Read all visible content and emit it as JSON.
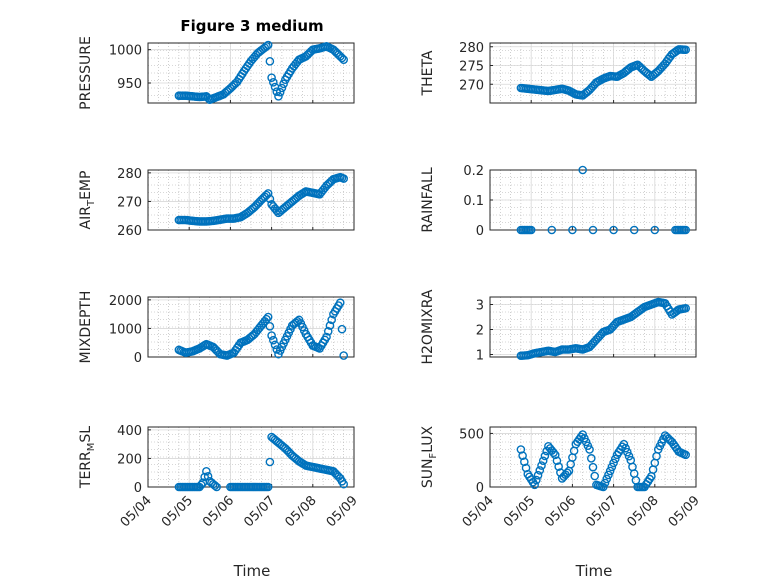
{
  "figure_title": "Figure 3 medium",
  "chart_data": [
    {
      "type": "scatter",
      "ylabel": "PRESSURE",
      "ylim": [
        920,
        1010
      ],
      "yticks": [
        950,
        1000
      ],
      "ytick_labels": [
        "950",
        "1000"
      ],
      "grid": true,
      "x": [
        "05/04 18:00",
        "05/04 22:00",
        "05/05 02:00",
        "05/05 06:00",
        "05/05 10:00",
        "05/05 12:00",
        "05/05 16:00",
        "05/05 20:00",
        "05/06 00:00",
        "05/06 04:00",
        "05/06 08:00",
        "05/06 12:00",
        "05/06 16:00",
        "05/06 20:00",
        "05/06 22:00",
        "05/07 00:00",
        "05/07 04:00",
        "05/07 08:00",
        "05/07 12:00",
        "05/07 16:00",
        "05/07 20:00",
        "05/08 00:00",
        "05/08 04:00",
        "05/08 08:00",
        "05/08 12:00",
        "05/08 14:00",
        "05/08 16:00",
        "05/08 18:00"
      ],
      "y": [
        931,
        931,
        930,
        929,
        930,
        925,
        929,
        933,
        942,
        952,
        968,
        983,
        995,
        1003,
        1007,
        958,
        930,
        955,
        972,
        985,
        990,
        1000,
        1002,
        1005,
        1000,
        995,
        990,
        985
      ]
    },
    {
      "type": "scatter",
      "ylabel": "THETA",
      "ylim": [
        265,
        281
      ],
      "yticks": [
        270,
        275,
        280
      ],
      "ytick_labels": [
        "270",
        "275",
        "280"
      ],
      "grid": true,
      "x": [
        "05/04 18:00",
        "05/04 22:00",
        "05/05 02:00",
        "05/05 06:00",
        "05/05 10:00",
        "05/05 14:00",
        "05/05 18:00",
        "05/05 22:00",
        "05/06 02:00",
        "05/06 06:00",
        "05/06 10:00",
        "05/06 14:00",
        "05/06 18:00",
        "05/06 22:00",
        "05/07 02:00",
        "05/07 06:00",
        "05/07 10:00",
        "05/07 14:00",
        "05/07 18:00",
        "05/07 22:00",
        "05/08 02:00",
        "05/08 06:00",
        "05/08 10:00",
        "05/08 14:00",
        "05/08 18:00"
      ],
      "y": [
        269,
        268.8,
        268.6,
        268.4,
        268.2,
        268.5,
        268.8,
        268.3,
        267.3,
        267,
        268.5,
        270.5,
        271.5,
        272.2,
        272,
        273,
        274.5,
        275.2,
        273.5,
        272,
        273.5,
        275.5,
        278,
        279.3,
        279.2
      ]
    },
    {
      "type": "scatter",
      "ylabel": "AIR_TEMP",
      "ylim": [
        260,
        281
      ],
      "yticks": [
        260,
        270,
        280
      ],
      "ytick_labels": [
        "260",
        "270",
        "280"
      ],
      "grid": true,
      "x": [
        "05/04 18:00",
        "05/04 22:00",
        "05/05 02:00",
        "05/05 06:00",
        "05/05 10:00",
        "05/05 14:00",
        "05/05 18:00",
        "05/05 22:00",
        "05/06 02:00",
        "05/06 06:00",
        "05/06 10:00",
        "05/06 14:00",
        "05/06 18:00",
        "05/06 22:00",
        "05/07 00:00",
        "05/07 04:00",
        "05/07 08:00",
        "05/07 12:00",
        "05/07 16:00",
        "05/07 20:00",
        "05/08 00:00",
        "05/08 04:00",
        "05/08 08:00",
        "05/08 12:00",
        "05/08 16:00",
        "05/08 18:00"
      ],
      "y": [
        263.5,
        263.5,
        263.2,
        263,
        263,
        263.2,
        263.6,
        264,
        264,
        264.5,
        266,
        268,
        270.5,
        272.8,
        269,
        266,
        268,
        270,
        272,
        273.5,
        273,
        272.5,
        275.5,
        277.8,
        278.5,
        278
      ]
    },
    {
      "type": "scatter",
      "ylabel": "RAINFALL",
      "ylim": [
        0,
        0.2
      ],
      "yticks": [
        0,
        0.1,
        0.2
      ],
      "ytick_labels": [
        "0",
        "0.1",
        "0.2"
      ],
      "grid": true,
      "x": [
        "05/04 18:00",
        "05/05 00:00",
        "05/05 12:00",
        "05/06 00:00",
        "05/06 12:00",
        "05/07 00:00",
        "05/07 12:00",
        "05/08 00:00",
        "05/08 12:00",
        "05/08 18:00",
        "05/06 06:00"
      ],
      "y": [
        0,
        0,
        0,
        0,
        0,
        0,
        0,
        0,
        0,
        0,
        0.2
      ]
    },
    {
      "type": "scatter",
      "ylabel": "MIXDEPTH",
      "ylim": [
        0,
        2100
      ],
      "yticks": [
        0,
        1000,
        2000
      ],
      "ytick_labels": [
        "0",
        "1000",
        "2000"
      ],
      "grid": true,
      "x": [
        "05/04 18:00",
        "05/04 22:00",
        "05/05 02:00",
        "05/05 06:00",
        "05/05 10:00",
        "05/05 14:00",
        "05/05 18:00",
        "05/05 22:00",
        "05/06 02:00",
        "05/06 06:00",
        "05/06 10:00",
        "05/06 14:00",
        "05/06 18:00",
        "05/06 22:00",
        "05/07 00:00",
        "05/07 04:00",
        "05/07 08:00",
        "05/07 12:00",
        "05/07 16:00",
        "05/07 20:00",
        "05/08 00:00",
        "05/08 04:00",
        "05/08 08:00",
        "05/08 12:00",
        "05/08 16:00",
        "05/08 18:00"
      ],
      "y": [
        250,
        150,
        200,
        300,
        450,
        350,
        100,
        50,
        150,
        500,
        600,
        800,
        1100,
        1400,
        750,
        100,
        600,
        1100,
        1300,
        800,
        400,
        300,
        700,
        1500,
        1900,
        50
      ]
    },
    {
      "type": "scatter",
      "ylabel": "H2OMIXRA",
      "ylim": [
        0.9,
        3.3
      ],
      "yticks": [
        1,
        2,
        3
      ],
      "ytick_labels": [
        "1",
        "2",
        "3"
      ],
      "grid": true,
      "x": [
        "05/04 18:00",
        "05/04 22:00",
        "05/05 02:00",
        "05/05 06:00",
        "05/05 10:00",
        "05/05 14:00",
        "05/05 18:00",
        "05/05 22:00",
        "05/06 02:00",
        "05/06 06:00",
        "05/06 10:00",
        "05/06 14:00",
        "05/06 18:00",
        "05/06 22:00",
        "05/07 02:00",
        "05/07 06:00",
        "05/07 10:00",
        "05/07 14:00",
        "05/07 18:00",
        "05/07 22:00",
        "05/08 02:00",
        "05/08 06:00",
        "05/08 10:00",
        "05/08 14:00",
        "05/08 18:00"
      ],
      "y": [
        0.95,
        0.97,
        1.05,
        1.1,
        1.15,
        1.1,
        1.2,
        1.2,
        1.25,
        1.2,
        1.3,
        1.6,
        1.9,
        2.0,
        2.3,
        2.4,
        2.5,
        2.7,
        2.9,
        3.0,
        3.1,
        3.05,
        2.6,
        2.8,
        2.85
      ]
    },
    {
      "type": "scatter",
      "ylabel": "TERR_MSL",
      "ylim": [
        0,
        420
      ],
      "yticks": [
        0,
        200,
        400
      ],
      "ytick_labels": [
        "0",
        "200",
        "400"
      ],
      "grid": true,
      "x": [
        "05/04 18:00",
        "05/05 00:00",
        "05/05 06:00",
        "05/05 08:00",
        "05/05 10:00",
        "05/05 12:00",
        "05/05 16:00",
        "05/06 00:00",
        "05/06 06:00",
        "05/06 12:00",
        "05/06 18:00",
        "05/06 22:00",
        "05/07 00:00",
        "05/07 04:00",
        "05/07 08:00",
        "05/07 12:00",
        "05/07 16:00",
        "05/07 20:00",
        "05/08 00:00",
        "05/08 04:00",
        "05/08 08:00",
        "05/08 12:00",
        "05/08 16:00",
        "05/08 18:00"
      ],
      "y": [
        0,
        0,
        0,
        30,
        110,
        40,
        0,
        0,
        0,
        0,
        0,
        0,
        350,
        310,
        270,
        220,
        180,
        150,
        140,
        130,
        120,
        110,
        60,
        20
      ]
    },
    {
      "type": "scatter",
      "ylabel": "SUN_FLUX",
      "ylim": [
        0,
        560
      ],
      "yticks": [
        0,
        500
      ],
      "ytick_labels": [
        "0",
        "500"
      ],
      "grid": true,
      "x": [
        "05/04 18:00",
        "05/04 22:00",
        "05/05 02:00",
        "05/05 06:00",
        "05/05 10:00",
        "05/05 14:00",
        "05/05 18:00",
        "05/05 22:00",
        "05/06 02:00",
        "05/06 06:00",
        "05/06 10:00",
        "05/06 14:00",
        "05/06 18:00",
        "05/06 22:00",
        "05/07 02:00",
        "05/07 06:00",
        "05/07 10:00",
        "05/07 14:00",
        "05/07 18:00",
        "05/07 22:00",
        "05/08 02:00",
        "05/08 06:00",
        "05/08 10:00",
        "05/08 14:00",
        "05/08 18:00"
      ],
      "y": [
        350,
        120,
        20,
        200,
        380,
        300,
        80,
        150,
        400,
        490,
        350,
        20,
        0,
        150,
        300,
        400,
        250,
        0,
        0,
        100,
        350,
        480,
        420,
        330,
        300
      ]
    }
  ],
  "xtick_labels": [
    "05/04",
    "05/05",
    "05/06",
    "05/07",
    "05/08",
    "05/09"
  ],
  "xlabel": "Time",
  "colors": {
    "marker": "#0072BD",
    "axes": "#262626",
    "grid": "#b0b0b0"
  }
}
